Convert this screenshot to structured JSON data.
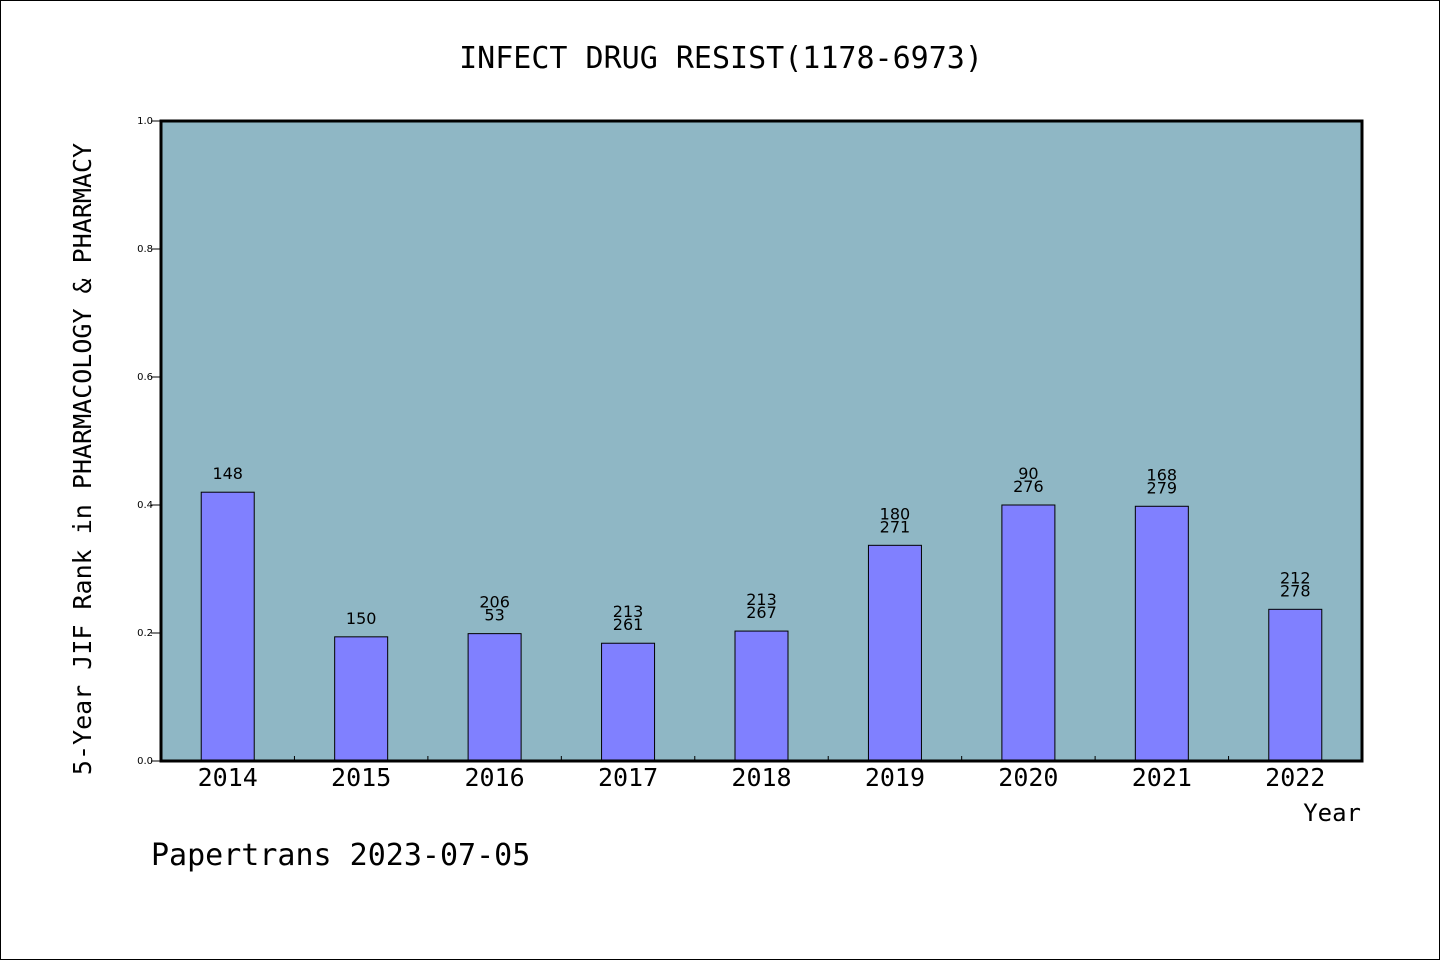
{
  "chart_data": {
    "type": "bar",
    "title": "INFECT DRUG RESIST(1178-6973)",
    "xlabel": "Year",
    "ylabel": "5-Year JIF Rank in PHARMACOLOGY & PHARMACY",
    "categories": [
      "2014",
      "2015",
      "2016",
      "2017",
      "2018",
      "2019",
      "2020",
      "2021",
      "2022"
    ],
    "values": [
      0.42,
      0.194,
      0.199,
      0.184,
      0.203,
      0.337,
      0.4,
      0.398,
      0.237
    ],
    "bar_labels": [
      [
        "148"
      ],
      [
        "150"
      ],
      [
        "206",
        "53"
      ],
      [
        "213",
        "261"
      ],
      [
        "213",
        "267"
      ],
      [
        "180",
        "271"
      ],
      [
        "90",
        "276"
      ],
      [
        "168",
        "279"
      ],
      [
        "212",
        "278"
      ]
    ],
    "ylim": [
      0,
      1.0
    ],
    "yticks": [
      "0.0",
      "0.2",
      "0.4",
      "0.6",
      "0.8",
      "1.0"
    ],
    "grid": false,
    "colors": {
      "plot_background": "#8fb7c5",
      "bar_fill": "#8080ff",
      "bar_stroke": "#000000"
    }
  },
  "footer": "Papertrans 2023-07-05"
}
